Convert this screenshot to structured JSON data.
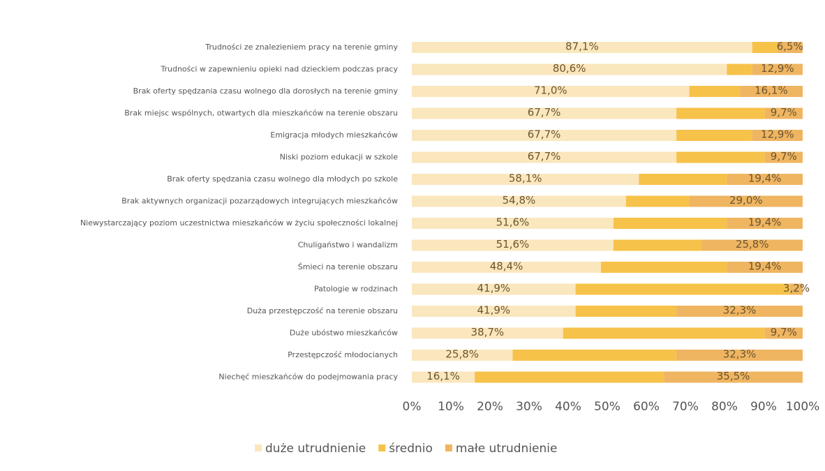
{
  "chart_data": {
    "type": "stacked-barh",
    "categories": [
      "Trudności ze znalezieniem pracy na terenie gminy",
      "Trudności w zapewnieniu opieki nad dzieckiem podczas pracy",
      "Brak oferty spędzania czasu wolnego dla dorosłych na terenie gminy",
      "Brak miejsc wspólnych, otwartych dla mieszkańców na terenie obszaru",
      "Emigracja młodych mieszkańców",
      "Niski poziom edukacji w szkole",
      "Brak oferty spędzania czasu wolnego dla młodych po szkole",
      "Brak aktywnych organizacji pozarządowych integrujących mieszkańców",
      "Niewystarczający poziom uczestnictwa mieszkańców w życiu społeczności lokalnej",
      "Chuligaństwo i wandalizm",
      "Śmieci na terenie obszaru",
      "Patologie w rodzinach",
      "Duża przestępczość na terenie obszaru",
      "Duże ubóstwo mieszkańców",
      "Przestępczość młodocianych",
      "Niechęć mieszkańców do podejmowania pracy"
    ],
    "series": [
      {
        "name": "duże utrudnienie",
        "color": "#fbe7bd",
        "values": [
          87.1,
          80.6,
          71.0,
          67.7,
          67.7,
          67.7,
          58.1,
          54.8,
          51.6,
          51.6,
          48.4,
          41.9,
          41.9,
          38.7,
          25.8,
          16.1
        ],
        "value_labels": [
          "87,1%",
          "80,6%",
          "71,0%",
          "67,7%",
          "67,7%",
          "67,7%",
          "58,1%",
          "54,8%",
          "51,6%",
          "51,6%",
          "48,4%",
          "41,9%",
          "41,9%",
          "38,7%",
          "25,8%",
          "16,1%"
        ]
      },
      {
        "name": "średnio",
        "color": "#f6c24a",
        "values": [
          6.4,
          6.5,
          12.9,
          22.6,
          19.4,
          22.6,
          22.5,
          16.2,
          29.0,
          22.6,
          32.2,
          54.9,
          25.8,
          51.6,
          41.9,
          48.4
        ]
      },
      {
        "name": "małe utrudnienie",
        "color": "#efb561",
        "values": [
          6.5,
          12.9,
          16.1,
          9.7,
          12.9,
          9.7,
          19.4,
          29.0,
          19.4,
          25.8,
          19.4,
          3.2,
          32.3,
          9.7,
          32.3,
          35.5
        ],
        "value_labels": [
          "6,5%",
          "12,9%",
          "16,1%",
          "9,7%",
          "12,9%",
          "9,7%",
          "19,4%",
          "29,0%",
          "19,4%",
          "25,8%",
          "19,4%",
          "3,2%",
          "32,3%",
          "9,7%",
          "32,3%",
          "35,5%"
        ]
      }
    ],
    "xlim": [
      0,
      100
    ],
    "xticks": [
      {
        "value": 0,
        "label": "0%"
      },
      {
        "value": 10,
        "label": "10%"
      },
      {
        "value": 20,
        "label": "20%"
      },
      {
        "value": 30,
        "label": "30%"
      },
      {
        "value": 40,
        "label": "40%"
      },
      {
        "value": 50,
        "label": "50%"
      },
      {
        "value": 60,
        "label": "60%"
      },
      {
        "value": 70,
        "label": "70%"
      },
      {
        "value": 80,
        "label": "80%"
      },
      {
        "value": 90,
        "label": "90%"
      },
      {
        "value": 100,
        "label": "100%"
      }
    ]
  }
}
